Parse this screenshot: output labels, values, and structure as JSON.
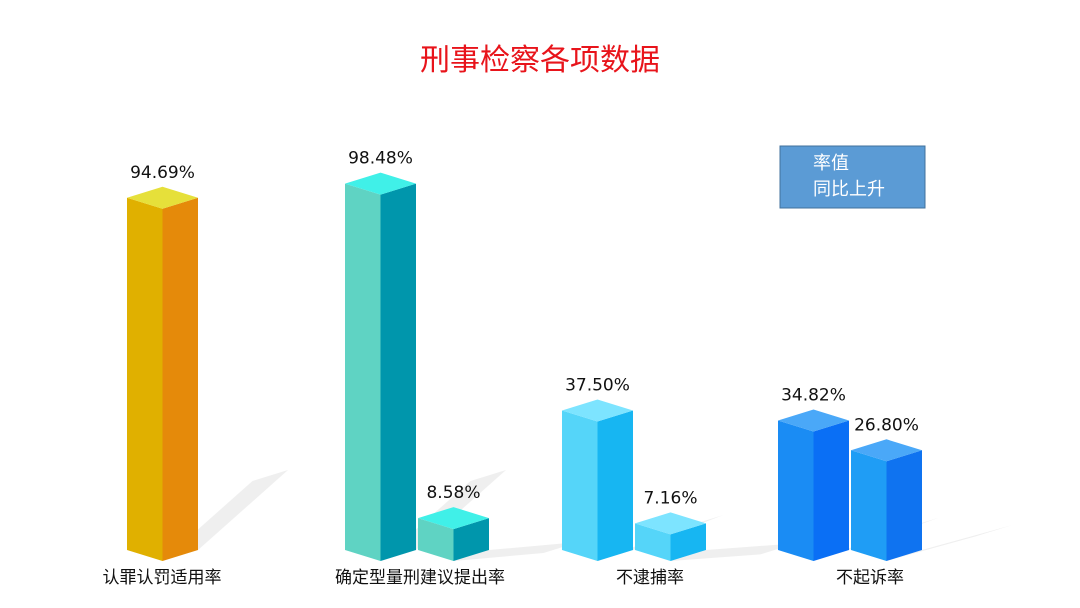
{
  "chart_data": {
    "type": "bar3d",
    "title": "刑事检察各项数据",
    "annotation": [
      "率值",
      "同比上升"
    ],
    "categories": [
      "认罪认罚适用率",
      "确定型量刑建议提出率",
      "不逮捕率",
      "不起诉率"
    ],
    "series": [
      {
        "values": [
          94.69,
          98.48,
          37.5,
          34.82
        ],
        "value_labels": [
          "94.69%",
          "98.48%",
          "37.50%",
          "34.82%"
        ],
        "colors": [
          "#e0b000",
          "#5fd3c3",
          "#55d5f9",
          "#1a8cf4"
        ],
        "side_colors": [
          "#e58a0a",
          "#0096ac",
          "#17b6f2",
          "#0a6ff5"
        ],
        "top_colors": [
          "#e6e03a",
          "#40f0e8",
          "#7de4ff",
          "#4aa8f8"
        ]
      },
      {
        "values": [
          null,
          8.58,
          7.16,
          26.8
        ],
        "value_labels": [
          null,
          "8.58%",
          "7.16%",
          "26.80%"
        ],
        "colors": [
          null,
          "#5fd3c3",
          "#55d5f9",
          "#1f9df5"
        ],
        "side_colors": [
          null,
          "#0096ac",
          "#17b6f2",
          "#0f73f0"
        ],
        "top_colors": [
          null,
          "#40f0e8",
          "#7de4ff",
          "#4aa8f8"
        ]
      }
    ]
  }
}
